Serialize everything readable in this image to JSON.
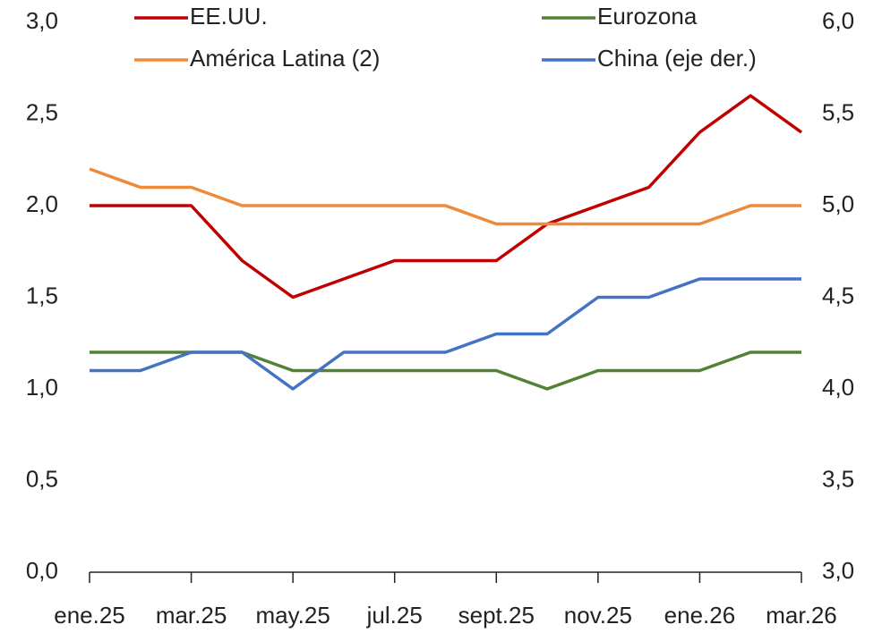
{
  "chart_data": {
    "type": "line",
    "categories": [
      "ene.25",
      null,
      "mar.25",
      null,
      "may.25",
      null,
      "jul.25",
      null,
      "sept.25",
      null,
      "nov.25",
      null,
      "ene.26",
      null,
      "mar.26"
    ],
    "series": [
      {
        "name": "EE.UU.",
        "color": "#c00000",
        "values": [
          2.0,
          2.0,
          2.0,
          1.7,
          1.5,
          1.6,
          1.7,
          1.7,
          1.7,
          1.9,
          2.0,
          2.1,
          2.4,
          2.6,
          2.4
        ]
      },
      {
        "name": "Eurozona",
        "color": "#548235",
        "values": [
          1.2,
          1.2,
          1.2,
          1.2,
          1.1,
          1.1,
          1.1,
          1.1,
          1.1,
          1.0,
          1.1,
          1.1,
          1.1,
          1.2,
          1.2
        ]
      },
      {
        "name": "América Latina (2)",
        "color": "#ed8b3a",
        "values": [
          2.2,
          2.1,
          2.1,
          2.0,
          2.0,
          2.0,
          2.0,
          2.0,
          1.9,
          1.9,
          1.9,
          1.9,
          1.9,
          2.0,
          2.0
        ]
      },
      {
        "name": "China (eje der.)",
        "color": "#4472c4",
        "axis": "y2",
        "values": [
          4.1,
          4.1,
          4.2,
          4.2,
          4.0,
          4.2,
          4.2,
          4.2,
          4.3,
          4.3,
          4.5,
          4.5,
          4.6,
          4.6,
          4.6
        ]
      }
    ],
    "ylim": [
      0,
      3
    ],
    "yticks": [
      {
        "value": 0,
        "label": "0,0"
      },
      {
        "value": 0.5,
        "label": "0,5"
      },
      {
        "value": 1,
        "label": "1,0"
      },
      {
        "value": 1.5,
        "label": "1,5"
      },
      {
        "value": 2,
        "label": "2,0"
      },
      {
        "value": 2.5,
        "label": "2,5"
      },
      {
        "value": 3,
        "label": "3,0"
      }
    ],
    "y2lim": [
      3,
      6
    ],
    "y2ticks": [
      {
        "value": 3,
        "label": "3,0"
      },
      {
        "value": 3.5,
        "label": "3,5"
      },
      {
        "value": 4,
        "label": "4,0"
      },
      {
        "value": 4.5,
        "label": "4,5"
      },
      {
        "value": 5,
        "label": "5,0"
      },
      {
        "value": 5.5,
        "label": "5,5"
      },
      {
        "value": 6,
        "label": "6,0"
      }
    ],
    "grid": false
  }
}
